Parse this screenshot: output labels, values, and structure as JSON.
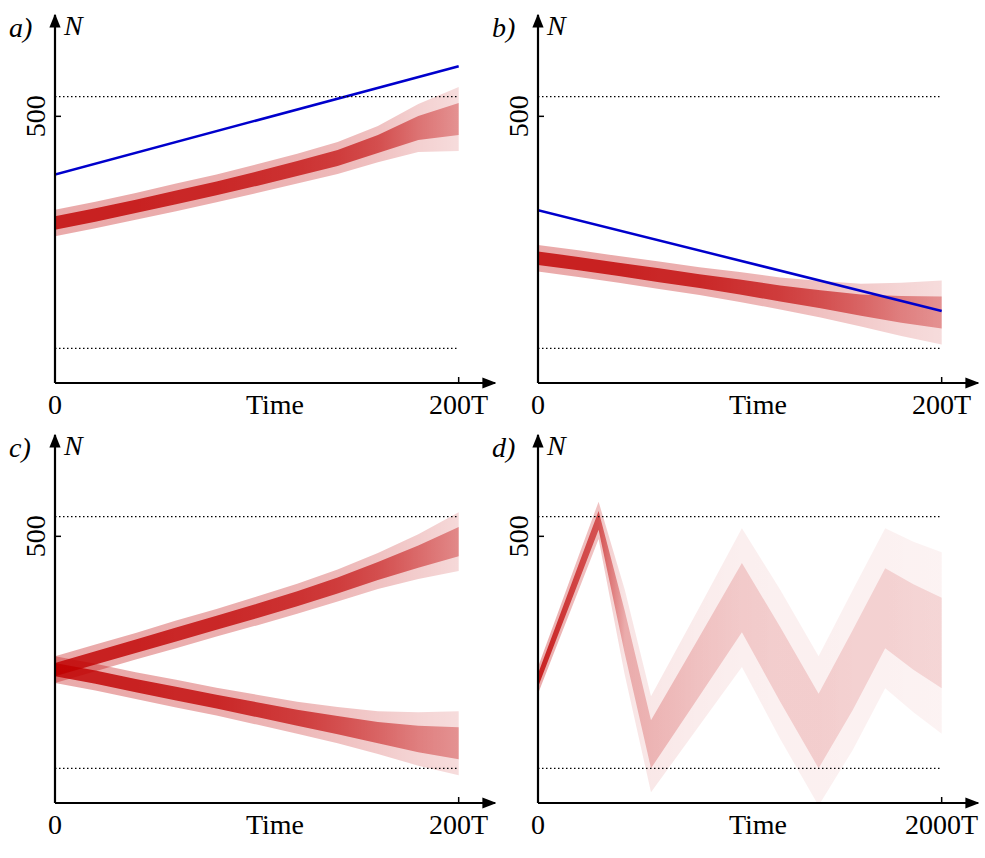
{
  "chart_data": [
    {
      "type": "line",
      "panel": "a)",
      "x_label": "Time",
      "y_label": "N",
      "xlim": [
        0,
        218
      ],
      "ylim": [
        0,
        690
      ],
      "xticks": [
        0,
        {
          "value": 200,
          "label": "200T"
        }
      ],
      "yticks": [
        500
      ],
      "reference_lines": {
        "values": [
          65,
          537
        ],
        "line_style": "dotted",
        "color": "#000000"
      },
      "series": [
        {
          "type": "band",
          "color": "#c00000",
          "x": [
            0,
            20,
            40,
            60,
            80,
            100,
            120,
            140,
            160,
            180,
            200
          ],
          "values": [
            300,
            315,
            331,
            348,
            365,
            383,
            402,
            422,
            448,
            478,
            495
          ],
          "spread": [
            25,
            25,
            25,
            26,
            26,
            27,
            28,
            30,
            34,
            45,
            60
          ]
        },
        {
          "type": "line",
          "color": "#0000cc",
          "x": [
            0,
            200
          ],
          "values": [
            391,
            594
          ]
        }
      ]
    },
    {
      "type": "line",
      "panel": "b)",
      "x_label": "Time",
      "y_label": "N",
      "xlim": [
        0,
        218
      ],
      "ylim": [
        0,
        690
      ],
      "xticks": [
        0,
        {
          "value": 200,
          "label": "200T"
        }
      ],
      "yticks": [
        500
      ],
      "reference_lines": {
        "values": [
          65,
          537
        ],
        "line_style": "dotted",
        "color": "#000000"
      },
      "series": [
        {
          "type": "band",
          "color": "#c00000",
          "x": [
            0,
            20,
            40,
            60,
            80,
            100,
            120,
            140,
            160,
            180,
            200
          ],
          "values": [
            234,
            224,
            213,
            202,
            191,
            180,
            168,
            157,
            146,
            138,
            132
          ],
          "spread": [
            25,
            25,
            25,
            26,
            26,
            28,
            30,
            34,
            40,
            50,
            60
          ]
        },
        {
          "type": "line",
          "color": "#0000cc",
          "x": [
            0,
            200
          ],
          "values": [
            324,
            135
          ]
        }
      ]
    },
    {
      "type": "line",
      "panel": "c)",
      "x_label": "Time",
      "y_label": "N",
      "xlim": [
        0,
        218
      ],
      "ylim": [
        0,
        690
      ],
      "xticks": [
        0,
        {
          "value": 200,
          "label": "200T"
        }
      ],
      "yticks": [
        500
      ],
      "reference_lines": {
        "values": [
          65,
          537
        ],
        "line_style": "dotted",
        "color": "#000000"
      },
      "series": [
        {
          "type": "band",
          "color": "#c00000",
          "x": [
            0,
            20,
            40,
            60,
            80,
            100,
            120,
            140,
            160,
            180,
            200
          ],
          "values": [
            250,
            272,
            294,
            316,
            338,
            360,
            383,
            408,
            435,
            462,
            490
          ],
          "spread": [
            25,
            25,
            25,
            26,
            26,
            27,
            28,
            30,
            34,
            42,
            55
          ]
        },
        {
          "type": "band",
          "color": "#c00000",
          "x": [
            0,
            20,
            40,
            60,
            80,
            100,
            120,
            140,
            160,
            180,
            200
          ],
          "values": [
            250,
            236,
            220,
            205,
            190,
            175,
            160,
            146,
            132,
            120,
            112
          ],
          "spread": [
            25,
            25,
            25,
            26,
            26,
            28,
            30,
            34,
            40,
            50,
            60
          ]
        }
      ]
    },
    {
      "type": "line",
      "panel": "d)",
      "x_label": "Time",
      "y_label": "N",
      "xlim": [
        0,
        2180
      ],
      "ylim": [
        0,
        690
      ],
      "xticks": [
        0,
        {
          "value": 2000,
          "label": "2000T"
        }
      ],
      "yticks": [
        500
      ],
      "reference_lines": {
        "values": [
          65,
          537
        ],
        "line_style": "dotted",
        "color": "#000000"
      },
      "series": [
        {
          "type": "band",
          "color": "#c00000",
          "x": [
            0,
            100,
            200,
            300,
            430,
            560,
            790,
            1010,
            1200,
            1390,
            1560,
            1720,
            1860,
            2000
          ],
          "values": [
            230,
            330,
            430,
            530,
            320,
            110,
            250,
            385,
            260,
            135,
            250,
            365,
            330,
            300
          ],
          "spread": [
            25,
            28,
            32,
            35,
            80,
            90,
            110,
            130,
            140,
            140,
            150,
            150,
            160,
            170
          ]
        }
      ]
    }
  ]
}
